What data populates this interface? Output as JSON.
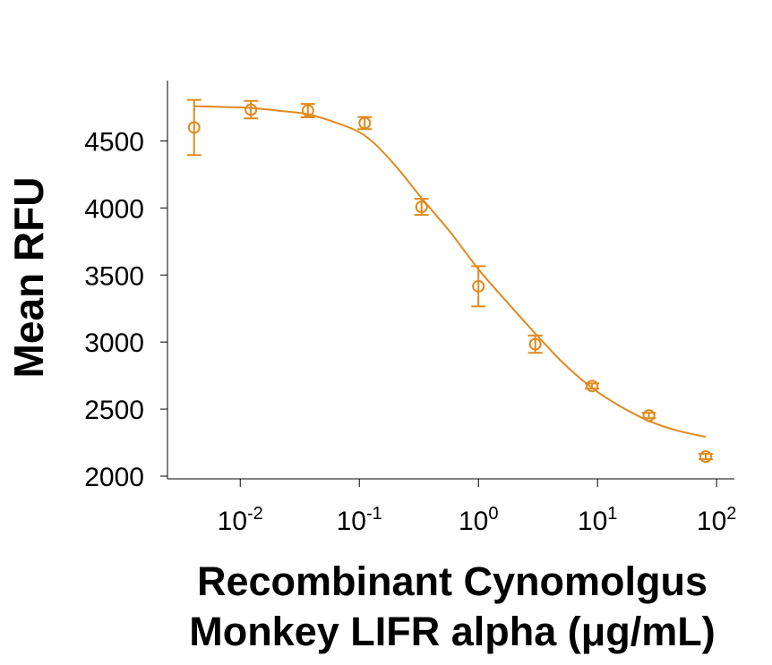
{
  "chart_data": {
    "type": "scatter",
    "xlabel": "Recombinant Cynomolgus Monkey LIFR alpha (μg/mL)",
    "ylabel": "Mean RFU",
    "xscale": "log",
    "xlim": [
      0.00245,
      141
    ],
    "ylim": [
      2000,
      4950
    ],
    "xticks": [
      {
        "value": 0.01,
        "label": "10",
        "exponent": "-2"
      },
      {
        "value": 0.1,
        "label": "10",
        "exponent": "-1"
      },
      {
        "value": 1,
        "label": "10",
        "exponent": "0"
      },
      {
        "value": 10,
        "label": "10",
        "exponent": "1"
      },
      {
        "value": 100,
        "label": "10",
        "exponent": "2"
      }
    ],
    "yticks": [
      2000,
      2500,
      3000,
      3500,
      4000,
      4500
    ],
    "series": [
      {
        "color": "#e08a1e",
        "x": [
          0.0041,
          0.0123,
          0.037,
          0.111,
          0.333,
          1,
          3,
          9,
          27,
          81
        ],
        "values": [
          4600,
          4733,
          4726,
          4633,
          4008,
          3416,
          2984,
          2672,
          2452,
          2146
        ],
        "errors": [
          206,
          65,
          50,
          45,
          60,
          150,
          65,
          20,
          20,
          20
        ]
      },
      {
        "type": "line",
        "color": "#e08a1e",
        "x": [
          0.0041,
          0.0071,
          0.0123,
          0.021,
          0.037,
          0.064,
          0.111,
          0.19,
          0.333,
          0.58,
          1,
          1.73,
          3,
          5.2,
          9,
          15.6,
          27,
          46.8,
          81
        ],
        "values": [
          4759,
          4753,
          4746,
          4725,
          4699,
          4635,
          4540,
          4340,
          4074,
          3820,
          3543,
          3300,
          3064,
          2840,
          2658,
          2520,
          2412,
          2340,
          2293
        ]
      }
    ]
  }
}
